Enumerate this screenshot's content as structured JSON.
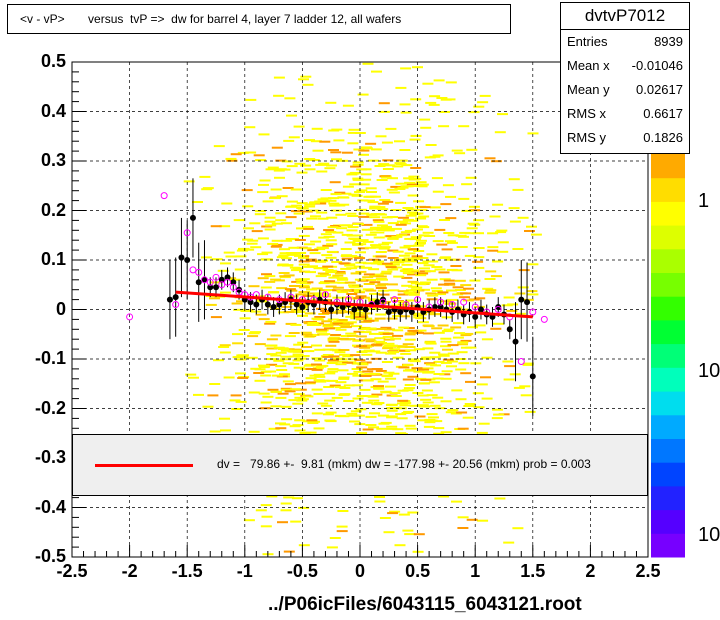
{
  "title": "<v - vP>       versus  tvP =>  dw for barrel 4, layer 7 ladder 12, all wafers",
  "stats": {
    "name": "dvtvP7012",
    "rows": [
      {
        "label": "Entries",
        "value": "8939"
      },
      {
        "label": "Mean x",
        "value": "-0.01046"
      },
      {
        "label": "Mean y",
        "value": "0.02617"
      },
      {
        "label": "RMS x",
        "value": "0.6617"
      },
      {
        "label": "RMS y",
        "value": "0.1826"
      }
    ]
  },
  "fit_text": "dv =   79.86 +-  9.81 (mkm) dw = -177.98 +- 20.56 (mkm) prob = 0.003",
  "x_axis_title": "../P06icFiles/6043115_6043121.root",
  "colors": {
    "fit_line": "#ff0000",
    "mean_points": "#000000",
    "open_points": "#ff00ff"
  },
  "chart_data": {
    "type": "heatmap",
    "title": "<v - vP>       versus  tvP =>  dw for barrel 4, layer 7 ladder 12, all wafers",
    "xlabel": "../P06icFiles/6043115_6043121.root",
    "ylabel": "",
    "xlim": [
      -2.5,
      2.5
    ],
    "ylim": [
      -0.5,
      0.5
    ],
    "x_ticks": [
      "-2.5",
      "-2",
      "-1.5",
      "-1",
      "-0.5",
      "0",
      "0.5",
      "1",
      "1.5",
      "2",
      "2.5"
    ],
    "y_ticks": [
      "0.5",
      "0.4",
      "0.3",
      "0.2",
      "0.1",
      "0",
      "-0.1",
      "-0.2",
      "-0.3",
      "-0.4",
      "-0.5"
    ],
    "z_ticks": [
      "1",
      "10",
      "10"
    ],
    "grid": true,
    "fit_line": {
      "x": [
        -1.6,
        1.5
      ],
      "y": [
        0.035,
        -0.015
      ]
    },
    "profile_means": {
      "x": [
        -1.65,
        -1.6,
        -1.55,
        -1.5,
        -1.45,
        -1.4,
        -1.35,
        -1.3,
        -1.25,
        -1.2,
        -1.15,
        -1.1,
        -1.05,
        -1.0,
        -0.95,
        -0.9,
        -0.85,
        -0.8,
        -0.75,
        -0.7,
        -0.65,
        -0.6,
        -0.55,
        -0.5,
        -0.45,
        -0.4,
        -0.35,
        -0.3,
        -0.25,
        -0.2,
        -0.15,
        -0.1,
        -0.05,
        0.0,
        0.05,
        0.1,
        0.15,
        0.2,
        0.25,
        0.3,
        0.35,
        0.4,
        0.45,
        0.5,
        0.55,
        0.6,
        0.65,
        0.7,
        0.75,
        0.8,
        0.85,
        0.9,
        0.95,
        1.0,
        1.05,
        1.1,
        1.15,
        1.2,
        1.25,
        1.3,
        1.35,
        1.4,
        1.45,
        1.5
      ],
      "y": [
        0.02,
        0.025,
        0.105,
        0.1,
        0.185,
        0.055,
        0.06,
        0.045,
        0.045,
        0.06,
        0.065,
        0.055,
        0.04,
        0.02,
        0.015,
        0.01,
        0.02,
        0.01,
        0.005,
        0.01,
        0.015,
        0.02,
        0.01,
        0.005,
        0.015,
        0.01,
        0.02,
        0.015,
        0.0,
        0.01,
        0.005,
        0.01,
        0.0,
        0.005,
        0.0,
        0.01,
        0.015,
        0.02,
        -0.005,
        0.0,
        -0.005,
        0.0,
        -0.005,
        0.005,
        -0.005,
        0.0,
        0.005,
        0.005,
        0.0,
        -0.005,
        0.0,
        -0.01,
        -0.005,
        -0.015,
        0.0,
        -0.01,
        -0.015,
        0.005,
        -0.01,
        -0.04,
        -0.065,
        0.02,
        0.015,
        -0.135
      ]
    },
    "open_points": {
      "x": [
        -2.0,
        -1.7,
        -1.6,
        -1.5,
        -1.45,
        -1.4,
        -1.35,
        -1.3,
        -1.25,
        -1.2,
        -1.15,
        -1.1,
        -1.05,
        -1.0,
        -0.95,
        -0.9,
        -0.8,
        -0.7,
        -0.6,
        -0.5,
        -0.4,
        -0.3,
        -0.2,
        -0.1,
        0.0,
        0.1,
        0.2,
        0.3,
        0.4,
        0.5,
        0.6,
        0.7,
        0.8,
        0.9,
        1.0,
        1.1,
        1.2,
        1.3,
        1.4,
        1.5,
        1.6
      ],
      "y": [
        -0.015,
        0.23,
        0.01,
        0.155,
        0.08,
        0.075,
        0.06,
        0.055,
        0.065,
        0.05,
        0.055,
        0.045,
        0.035,
        0.03,
        0.025,
        0.03,
        0.025,
        0.02,
        0.025,
        0.02,
        0.02,
        0.03,
        0.015,
        0.02,
        0.015,
        0.01,
        0.015,
        0.02,
        0.01,
        0.02,
        0.005,
        0.015,
        0.01,
        0.015,
        0.005,
        -0.005,
        0.0,
        -0.015,
        -0.105,
        -0.005,
        -0.02
      ]
    }
  }
}
